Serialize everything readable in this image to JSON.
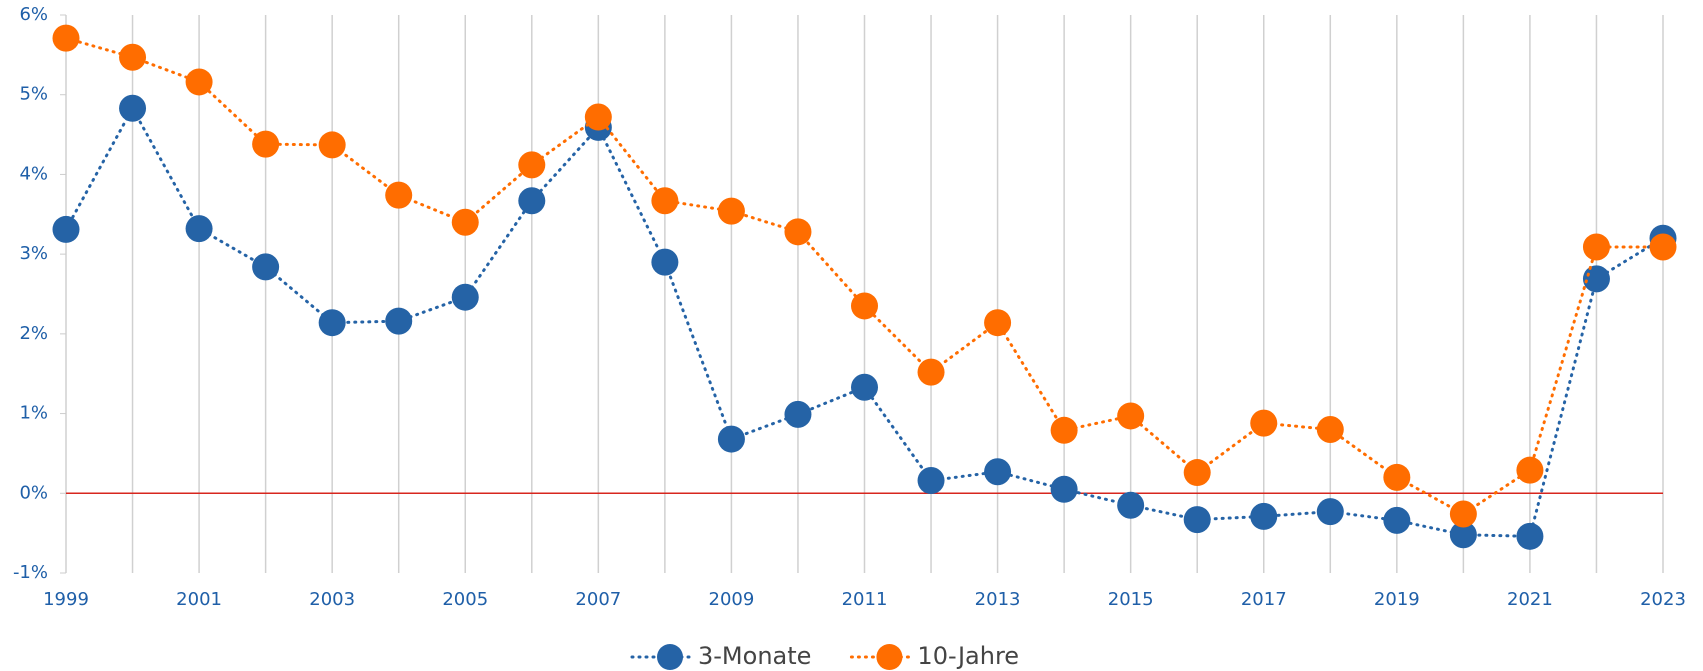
{
  "chart_data": {
    "type": "line",
    "x": [
      1999,
      2000,
      2001,
      2002,
      2003,
      2004,
      2005,
      2006,
      2007,
      2008,
      2009,
      2010,
      2011,
      2012,
      2013,
      2014,
      2015,
      2016,
      2017,
      2018,
      2019,
      2020,
      2021,
      2022,
      2023
    ],
    "series": [
      {
        "name": "3-Monate",
        "color": "#2563a6",
        "values": [
          3.31,
          4.83,
          3.32,
          2.84,
          2.14,
          2.16,
          2.46,
          3.67,
          4.59,
          2.9,
          0.68,
          0.99,
          1.33,
          0.16,
          0.27,
          0.05,
          -0.15,
          -0.33,
          -0.29,
          -0.23,
          -0.34,
          -0.52,
          -0.54,
          2.69,
          3.2
        ]
      },
      {
        "name": "10-Jahre",
        "color": "#ff6d00",
        "values": [
          5.71,
          5.47,
          5.16,
          4.38,
          4.37,
          3.74,
          3.4,
          4.12,
          4.72,
          3.67,
          3.54,
          3.28,
          2.35,
          1.52,
          2.14,
          0.79,
          0.97,
          0.26,
          0.88,
          0.8,
          0.2,
          -0.26,
          0.29,
          3.09,
          3.09
        ]
      }
    ],
    "xlim": [
      1999,
      2023
    ],
    "xticks": [
      1999,
      2001,
      2003,
      2005,
      2007,
      2009,
      2011,
      2013,
      2015,
      2017,
      2019,
      2021,
      2023
    ],
    "ylim": [
      -1,
      6
    ],
    "yticks": [
      {
        "value": -1,
        "label": "-1%"
      },
      {
        "value": 0,
        "label": "0%"
      },
      {
        "value": 1,
        "label": "1%"
      },
      {
        "value": 2,
        "label": "2%"
      },
      {
        "value": 3,
        "label": "3%"
      },
      {
        "value": 4,
        "label": "4%"
      },
      {
        "value": 5,
        "label": "5%"
      },
      {
        "value": 6,
        "label": "6%"
      }
    ],
    "grid": true,
    "baseline_color": "#d7261e",
    "legend": "bottom"
  }
}
